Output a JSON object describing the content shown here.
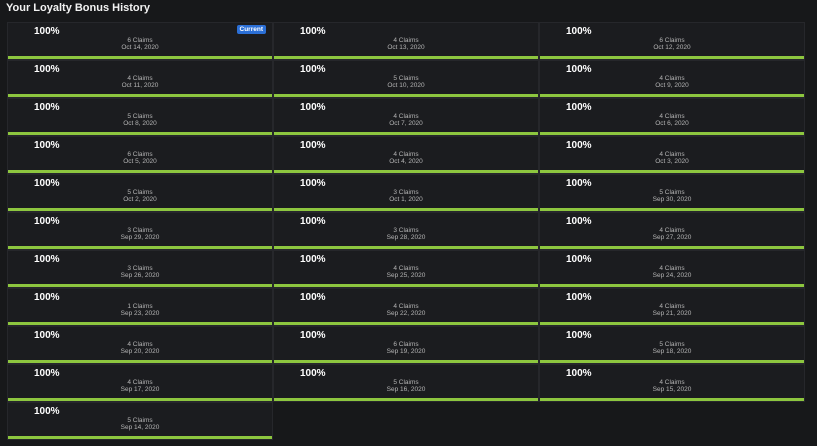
{
  "header": {
    "title": "Your Loyalty Bonus History"
  },
  "items": [
    {
      "percent": "100%",
      "claims": "6 Claims",
      "date": "Oct 14, 2020",
      "badge": "Current"
    },
    {
      "percent": "100%",
      "claims": "4 Claims",
      "date": "Oct 13, 2020"
    },
    {
      "percent": "100%",
      "claims": "6 Claims",
      "date": "Oct 12, 2020"
    },
    {
      "percent": "100%",
      "claims": "4 Claims",
      "date": "Oct 11, 2020"
    },
    {
      "percent": "100%",
      "claims": "5 Claims",
      "date": "Oct 10, 2020"
    },
    {
      "percent": "100%",
      "claims": "4 Claims",
      "date": "Oct 9, 2020"
    },
    {
      "percent": "100%",
      "claims": "5 Claims",
      "date": "Oct 8, 2020"
    },
    {
      "percent": "100%",
      "claims": "4 Claims",
      "date": "Oct 7, 2020"
    },
    {
      "percent": "100%",
      "claims": "4 Claims",
      "date": "Oct 6, 2020"
    },
    {
      "percent": "100%",
      "claims": "6 Claims",
      "date": "Oct 5, 2020"
    },
    {
      "percent": "100%",
      "claims": "4 Claims",
      "date": "Oct 4, 2020"
    },
    {
      "percent": "100%",
      "claims": "4 Claims",
      "date": "Oct 3, 2020"
    },
    {
      "percent": "100%",
      "claims": "5 Claims",
      "date": "Oct 2, 2020"
    },
    {
      "percent": "100%",
      "claims": "3 Claims",
      "date": "Oct 1, 2020"
    },
    {
      "percent": "100%",
      "claims": "5 Claims",
      "date": "Sep 30, 2020"
    },
    {
      "percent": "100%",
      "claims": "3 Claims",
      "date": "Sep 29, 2020"
    },
    {
      "percent": "100%",
      "claims": "3 Claims",
      "date": "Sep 28, 2020"
    },
    {
      "percent": "100%",
      "claims": "4 Claims",
      "date": "Sep 27, 2020"
    },
    {
      "percent": "100%",
      "claims": "3 Claims",
      "date": "Sep 26, 2020"
    },
    {
      "percent": "100%",
      "claims": "4 Claims",
      "date": "Sep 25, 2020"
    },
    {
      "percent": "100%",
      "claims": "4 Claims",
      "date": "Sep 24, 2020"
    },
    {
      "percent": "100%",
      "claims": "1 Claims",
      "date": "Sep 23, 2020"
    },
    {
      "percent": "100%",
      "claims": "4 Claims",
      "date": "Sep 22, 2020"
    },
    {
      "percent": "100%",
      "claims": "4 Claims",
      "date": "Sep 21, 2020"
    },
    {
      "percent": "100%",
      "claims": "4 Claims",
      "date": "Sep 20, 2020"
    },
    {
      "percent": "100%",
      "claims": "6 Claims",
      "date": "Sep 19, 2020"
    },
    {
      "percent": "100%",
      "claims": "5 Claims",
      "date": "Sep 18, 2020"
    },
    {
      "percent": "100%",
      "claims": "4 Claims",
      "date": "Sep 17, 2020"
    },
    {
      "percent": "100%",
      "claims": "5 Claims",
      "date": "Sep 16, 2020"
    },
    {
      "percent": "100%",
      "claims": "4 Claims",
      "date": "Sep 15, 2020"
    },
    {
      "percent": "100%",
      "claims": "5 Claims",
      "date": "Sep 14, 2020"
    }
  ]
}
